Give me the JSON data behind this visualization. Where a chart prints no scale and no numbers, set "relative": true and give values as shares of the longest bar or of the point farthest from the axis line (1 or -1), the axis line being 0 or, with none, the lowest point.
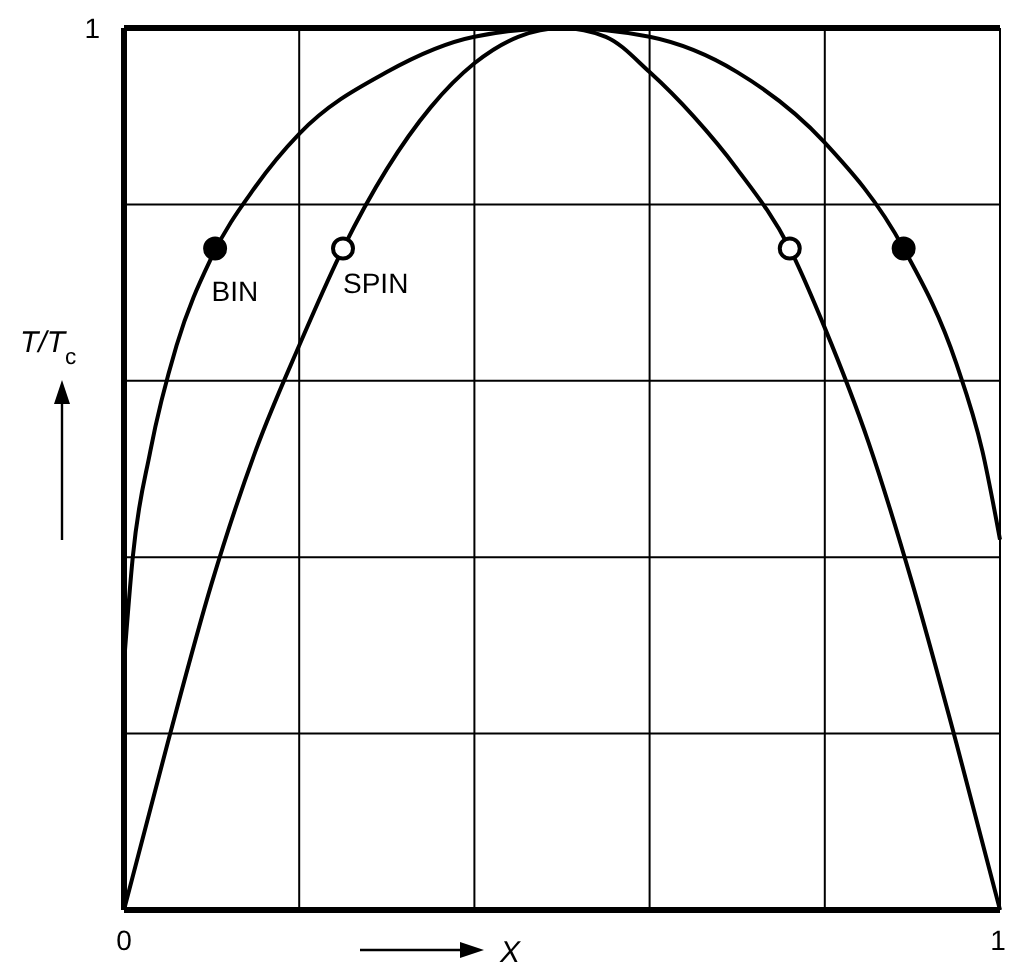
{
  "chart_data": {
    "type": "line",
    "xlabel": "X",
    "ylabel": "T/T$_{c}$",
    "relative": true,
    "annotations": [
      "1"
    ],
    "xlim": [
      0,
      1
    ],
    "xticks": [
      0,
      {
        "value": 0.2,
        "label": null
      },
      {
        "value": 0.4,
        "label": null
      },
      {
        "value": 0.6,
        "label": null
      },
      {
        "value": 0.8,
        "label": null
      },
      1
    ],
    "grid": true,
    "series": [
      {
        "name": "BIN",
        "color": "#000000",
        "x": [
          0,
          0.01,
          0.03,
          0.06,
          0.1,
          0.15,
          0.2,
          0.3,
          0.4,
          0.5,
          0.6,
          0.7,
          0.8,
          0.89,
          0.95,
          0.98,
          1
        ],
        "values": [
          0.28,
          0.4,
          0.52,
          0.64,
          0.74,
          0.82,
          0.88,
          0.95,
          0.99,
          1,
          0.99,
          0.95,
          0.87,
          0.75,
          0.62,
          0.52,
          0.42
        ]
      },
      {
        "name": "SPIN",
        "color": "#000000",
        "x": [
          0,
          0.05,
          0.1,
          0.15,
          0.2,
          0.25,
          0.3,
          0.35,
          0.4,
          0.45,
          0.5,
          0.55,
          0.6,
          0.65,
          0.7,
          0.76,
          0.8,
          0.85,
          0.9,
          0.95,
          1
        ],
        "values": [
          0,
          0.19,
          0.37,
          0.52,
          0.64,
          0.75,
          0.84,
          0.91,
          0.96,
          0.99,
          1,
          0.99,
          0.95,
          0.9,
          0.84,
          0.75,
          0.66,
          0.53,
          0.37,
          0.19,
          0
        ]
      },
      {
        "type": "scatter",
        "marker": "circle",
        "color": "#000000",
        "x": [
          0.104,
          0.89
        ],
        "values": [
          0.75,
          0.75
        ]
      },
      {
        "type": "scatter",
        "marker": "circle",
        "color": "#ffffff",
        "x": [
          0.25,
          0.76
        ],
        "values": [
          0.75,
          0.75
        ]
      }
    ]
  }
}
